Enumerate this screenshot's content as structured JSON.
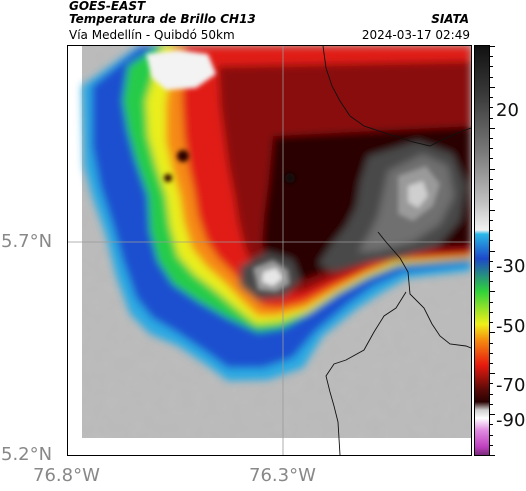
{
  "header": {
    "satellite": "GOES-EAST",
    "product": "Temperatura de Brillo CH13",
    "route": "Vía Medellín - Quibdó 50km",
    "organization": "SIATA",
    "timestamp": "2024-03-17 02:49"
  },
  "map": {
    "y_ticks": [
      "5.7°N",
      "5.2°N"
    ],
    "x_ticks": [
      "76.8°W",
      "76.3°W"
    ]
  },
  "colorbar": {
    "tick_labels": [
      "20",
      "-30",
      "-50",
      "-70",
      "-90"
    ],
    "colors": {
      "top": "#111111",
      "gray_band": "#bfbfbf",
      "cyan": "#2ab8e8",
      "blue": "#1d49c9",
      "green": "#2fd23a",
      "yellow": "#f0f019",
      "orange": "#f58a0f",
      "red": "#e81a0f",
      "dark_red": "#5a0a08",
      "magenta": "#c040c0"
    }
  }
}
